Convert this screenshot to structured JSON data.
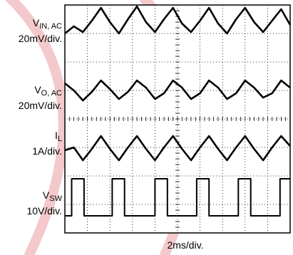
{
  "chart_data": {
    "type": "line",
    "title": "",
    "x_scale": "2ms/div.",
    "grid": true,
    "divisions": {
      "x": 10,
      "y": 8
    },
    "series": [
      {
        "name": "V_IN, AC",
        "symbol": "V",
        "subscript": "IN, AC",
        "scale": "20mV/div.",
        "waveform": "ripple with sharp rising edges",
        "x_ms": [
          0,
          0.8,
          1.6,
          2.4,
          3.2,
          4.0,
          4.8,
          5.6,
          6.4,
          7.2,
          8.0,
          8.8,
          9.6,
          10.4,
          11.2,
          12.0,
          12.8,
          13.6,
          14.4,
          15.2,
          16.0,
          16.8,
          17.6,
          18.4,
          19.2,
          20.0
        ],
        "y_div": [
          3.0,
          3.25,
          3.05,
          3.45,
          3.9,
          3.4,
          3.0,
          3.5,
          3.95,
          3.4,
          3.05,
          3.5,
          3.9,
          3.35,
          3.05,
          3.45,
          3.9,
          3.35,
          3.0,
          3.5,
          3.9,
          3.4,
          3.05,
          3.45,
          3.85,
          3.3
        ]
      },
      {
        "name": "V_O, AC",
        "symbol": "V",
        "subscript": "O, AC",
        "scale": "20mV/div.",
        "waveform": "sinusoidal ripple",
        "x_ms": [
          0,
          0.8,
          1.6,
          2.4,
          3.2,
          4.0,
          4.8,
          5.6,
          6.4,
          7.2,
          8.0,
          8.8,
          9.6,
          10.4,
          11.2,
          12.0,
          12.8,
          13.6,
          14.4,
          15.2,
          16.0,
          16.8,
          17.6,
          18.4,
          19.2,
          20.0
        ],
        "y_div": [
          1.25,
          1.0,
          0.65,
          0.95,
          1.35,
          1.05,
          0.7,
          0.95,
          1.35,
          1.1,
          0.7,
          0.9,
          1.35,
          1.1,
          0.7,
          0.9,
          1.35,
          1.1,
          0.7,
          0.9,
          1.35,
          1.1,
          0.75,
          0.9,
          1.35,
          1.1
        ]
      },
      {
        "name": "I_L",
        "symbol": "I",
        "subscript": "L",
        "scale": "1A/div.",
        "waveform": "triangular ripple",
        "x_ms": [
          0,
          0.8,
          1.6,
          2.4,
          3.2,
          4.0,
          4.8,
          5.6,
          6.4,
          7.2,
          8.0,
          8.8,
          9.6,
          10.4,
          11.2,
          12.0,
          12.8,
          13.6,
          14.4,
          15.2,
          16.0,
          16.8,
          17.6,
          18.4,
          19.2,
          20.0
        ],
        "y_div": [
          -1.1,
          -1.0,
          -1.45,
          -1.05,
          -0.6,
          -1.05,
          -1.45,
          -1.0,
          -0.6,
          -1.05,
          -1.45,
          -1.0,
          -0.6,
          -1.05,
          -1.45,
          -1.0,
          -0.6,
          -1.05,
          -1.45,
          -1.0,
          -0.6,
          -1.05,
          -1.45,
          -1.0,
          -0.6,
          -0.95
        ]
      },
      {
        "name": "V_SW",
        "symbol": "V",
        "subscript": "SW",
        "scale": "10V/div.",
        "waveform": "square pulse train",
        "x_ms": [
          0,
          0.6,
          0.6,
          1.7,
          1.7,
          4.2,
          4.2,
          5.3,
          5.3,
          8.0,
          8.0,
          9.1,
          9.1,
          11.7,
          11.7,
          12.8,
          12.8,
          15.4,
          15.4,
          16.5,
          16.5,
          19.1,
          19.1,
          20.0
        ],
        "y_div": [
          -3.4,
          -3.4,
          -2.1,
          -2.1,
          -3.4,
          -3.4,
          -2.1,
          -2.1,
          -3.4,
          -3.4,
          -2.1,
          -2.1,
          -3.4,
          -3.4,
          -2.1,
          -2.1,
          -3.4,
          -3.4,
          -2.1,
          -2.1,
          -3.4,
          -3.4,
          -2.1,
          -2.1
        ]
      }
    ],
    "accent_color": "#e8555c"
  }
}
